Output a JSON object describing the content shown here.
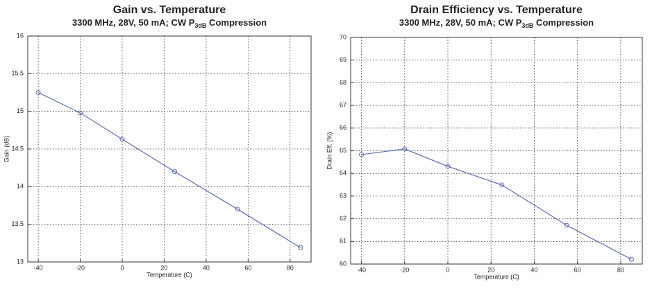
{
  "chart_data": [
    {
      "type": "line",
      "title": "Gain vs. Temperature",
      "subtitle": [
        "3300 MHz, 28V, 50 mA; CW P",
        "3dB",
        " Compression"
      ],
      "x_label": "Temperature (C)",
      "y_label": "Gain (dB)",
      "x": [
        -40,
        -20,
        0,
        25,
        55,
        85
      ],
      "series": [
        {
          "color": "#5b6bb5",
          "values": [
            15.25,
            14.98,
            14.63,
            14.2,
            13.7,
            13.19
          ]
        }
      ],
      "xlim": [
        -45,
        90
      ],
      "xticks": [
        -40,
        -20,
        0,
        20,
        40,
        60,
        80
      ],
      "ylim": [
        13,
        16
      ],
      "yticks": [
        13,
        13.5,
        14,
        14.5,
        15,
        15.5,
        16
      ],
      "grid": true
    },
    {
      "type": "line",
      "title": "Drain Efficiency vs. Temperature",
      "subtitle": [
        "3300 MHz, 28V, 50 mA; CW P",
        "3dB",
        " Compression"
      ],
      "x_label": "Temperature (C)",
      "y_label": "Drain Eff. (%)",
      "x": [
        -40,
        -20,
        0,
        25,
        55,
        85
      ],
      "series": [
        {
          "color": "#5b6bb5",
          "values": [
            64.83,
            65.08,
            64.31,
            63.49,
            61.71,
            60.21
          ]
        }
      ],
      "xlim": [
        -45,
        90
      ],
      "xticks": [
        -40,
        -20,
        0,
        20,
        40,
        60,
        80
      ],
      "ylim": [
        60,
        70
      ],
      "yticks": [
        60,
        61,
        62,
        63,
        64,
        65,
        66,
        67,
        68,
        69,
        70
      ],
      "grid": true
    }
  ]
}
